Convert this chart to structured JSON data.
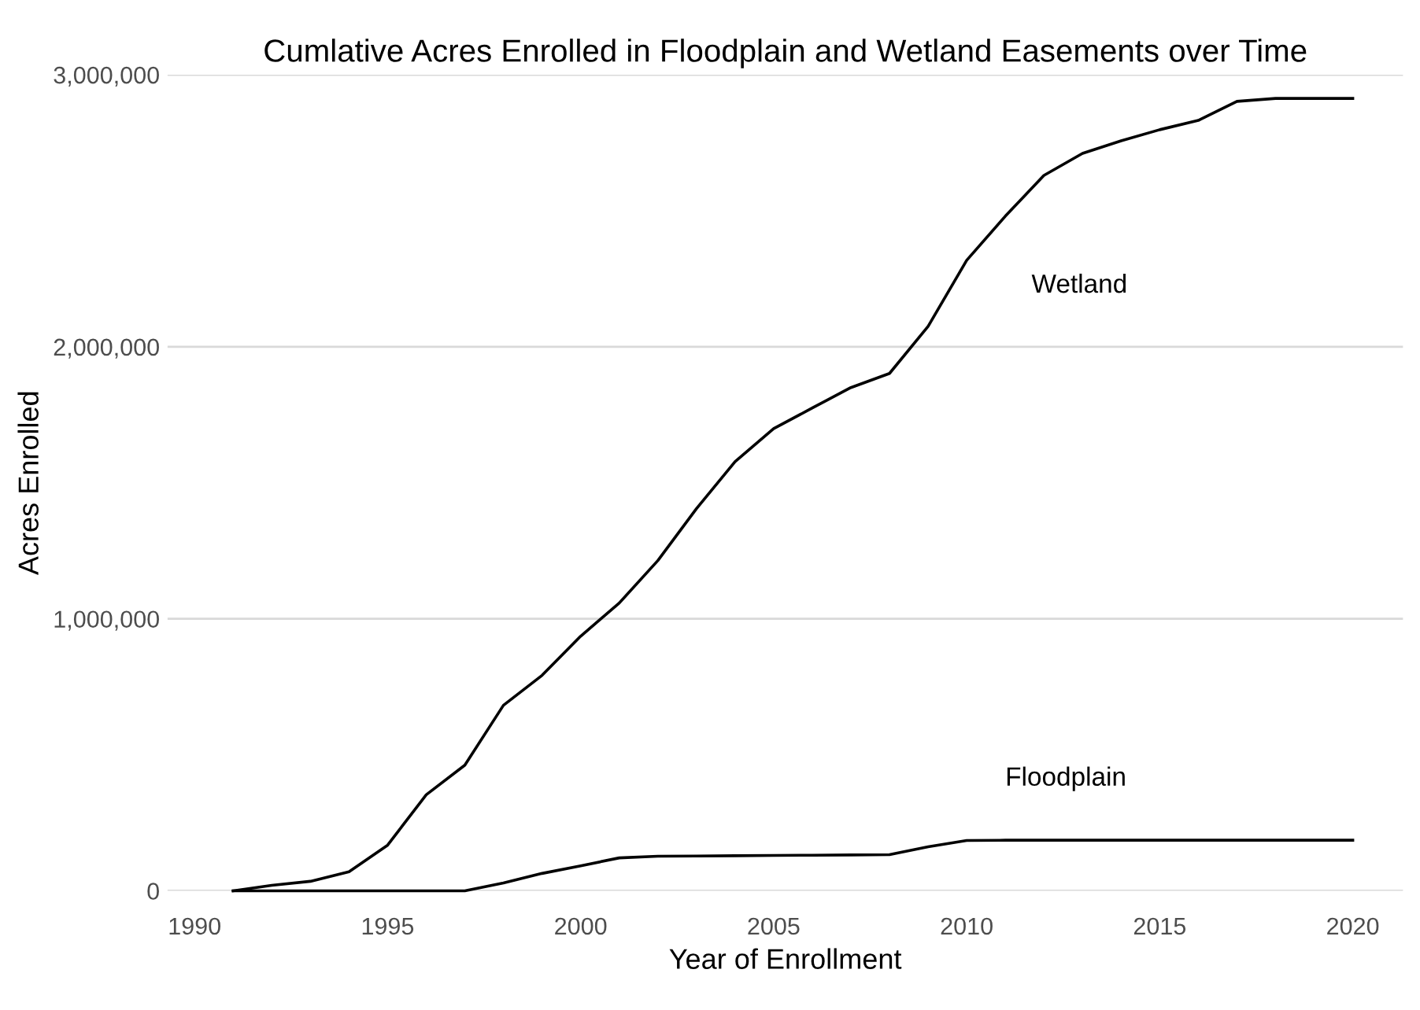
{
  "chart_data": {
    "type": "line",
    "title": "Cumlative Acres Enrolled in Floodplain and Wetland Easements over Time",
    "xlabel": "Year of Enrollment",
    "ylabel": "Acres Enrolled",
    "x": [
      1991,
      1992,
      1993,
      1994,
      1995,
      1996,
      1997,
      1998,
      1999,
      2000,
      2001,
      2002,
      2003,
      2004,
      2005,
      2006,
      2007,
      2008,
      2009,
      2010,
      2011,
      2012,
      2013,
      2014,
      2015,
      2016,
      2017,
      2018,
      2019,
      2020
    ],
    "series": [
      {
        "name": "Wetland",
        "color": "#000000",
        "values": [
          0,
          20000,
          35000,
          70000,
          168000,
          353000,
          462000,
          682000,
          792000,
          936000,
          1058000,
          1214000,
          1405000,
          1578000,
          1699000,
          1775000,
          1850000,
          1902000,
          2075000,
          2318000,
          2480000,
          2630000,
          2711000,
          2757000,
          2798000,
          2832000,
          2902000,
          2913000,
          2913000,
          2913000
        ]
      },
      {
        "name": "Floodplain",
        "color": "#000000",
        "values": [
          0,
          0,
          0,
          0,
          0,
          0,
          0,
          29000,
          64000,
          92000,
          121000,
          127000,
          128000,
          129000,
          130000,
          131000,
          132000,
          133000,
          162000,
          185000,
          186000,
          186000,
          186000,
          186000,
          186000,
          186000,
          186000,
          186000,
          186000,
          186000
        ]
      }
    ],
    "xlim": [
      1989.3,
      2021.3
    ],
    "xticks": [
      1990,
      1995,
      2000,
      2005,
      2010,
      2015,
      2020
    ],
    "ylim": [
      0,
      3000000
    ],
    "yticks": [
      {
        "value": 0,
        "label": "0"
      },
      {
        "value": 1000000,
        "label": "1,000,000"
      },
      {
        "value": 2000000,
        "label": "2,000,000"
      },
      {
        "value": 3000000,
        "label": "3,000,000"
      }
    ],
    "grid": "y",
    "legend": false,
    "line_style": "solid",
    "marker": "none"
  }
}
